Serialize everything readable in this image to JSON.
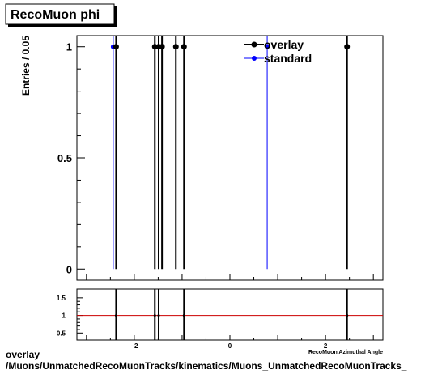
{
  "chart_data": {
    "type": "scatter",
    "title": "RecoMuon phi",
    "ylabel": "Entries / 0.05",
    "xlabel": "RecoMuon Azimuthal Angle",
    "xlim": [
      -3.2,
      3.2
    ],
    "ylim": [
      -0.05,
      1.05
    ],
    "y_ticks": [
      {
        "value": 0,
        "label": "0"
      },
      {
        "value": 0.5,
        "label": "0.5"
      },
      {
        "value": 1,
        "label": "1"
      }
    ],
    "series": [
      {
        "name": "overlay",
        "color": "#000000",
        "x": [
          -2.38,
          -1.57,
          -1.49,
          -1.42,
          -1.13,
          -0.96,
          2.45
        ],
        "y": [
          1,
          1,
          1,
          1,
          1,
          1,
          1
        ]
      },
      {
        "name": "standard",
        "color": "#0000ff",
        "x": [
          -2.44,
          0.78
        ],
        "y": [
          1,
          1
        ]
      }
    ],
    "legend": {
      "position": "top-right"
    },
    "ratio_panel": {
      "ylim": [
        0.3,
        1.75
      ],
      "y_ticks": [
        {
          "value": 0.5,
          "label": "0.5"
        },
        {
          "value": 1,
          "label": "1"
        },
        {
          "value": 1.5,
          "label": "1.5"
        }
      ],
      "x_ticks": [
        {
          "value": -2,
          "label": "−2"
        },
        {
          "value": 0,
          "label": "0"
        },
        {
          "value": 2,
          "label": "2"
        }
      ],
      "reference_line": 1,
      "reference_color": "#cc0000",
      "x": [
        -2.38,
        -1.57,
        -1.49,
        -0.96,
        2.45
      ],
      "y": [
        1,
        1,
        1,
        1,
        1
      ]
    }
  },
  "footer": {
    "line1": "overlay",
    "line2": "/Muons/UnmatchedRecoMuonTracks/kinematics/Muons_UnmatchedRecoMuonTracks_"
  }
}
